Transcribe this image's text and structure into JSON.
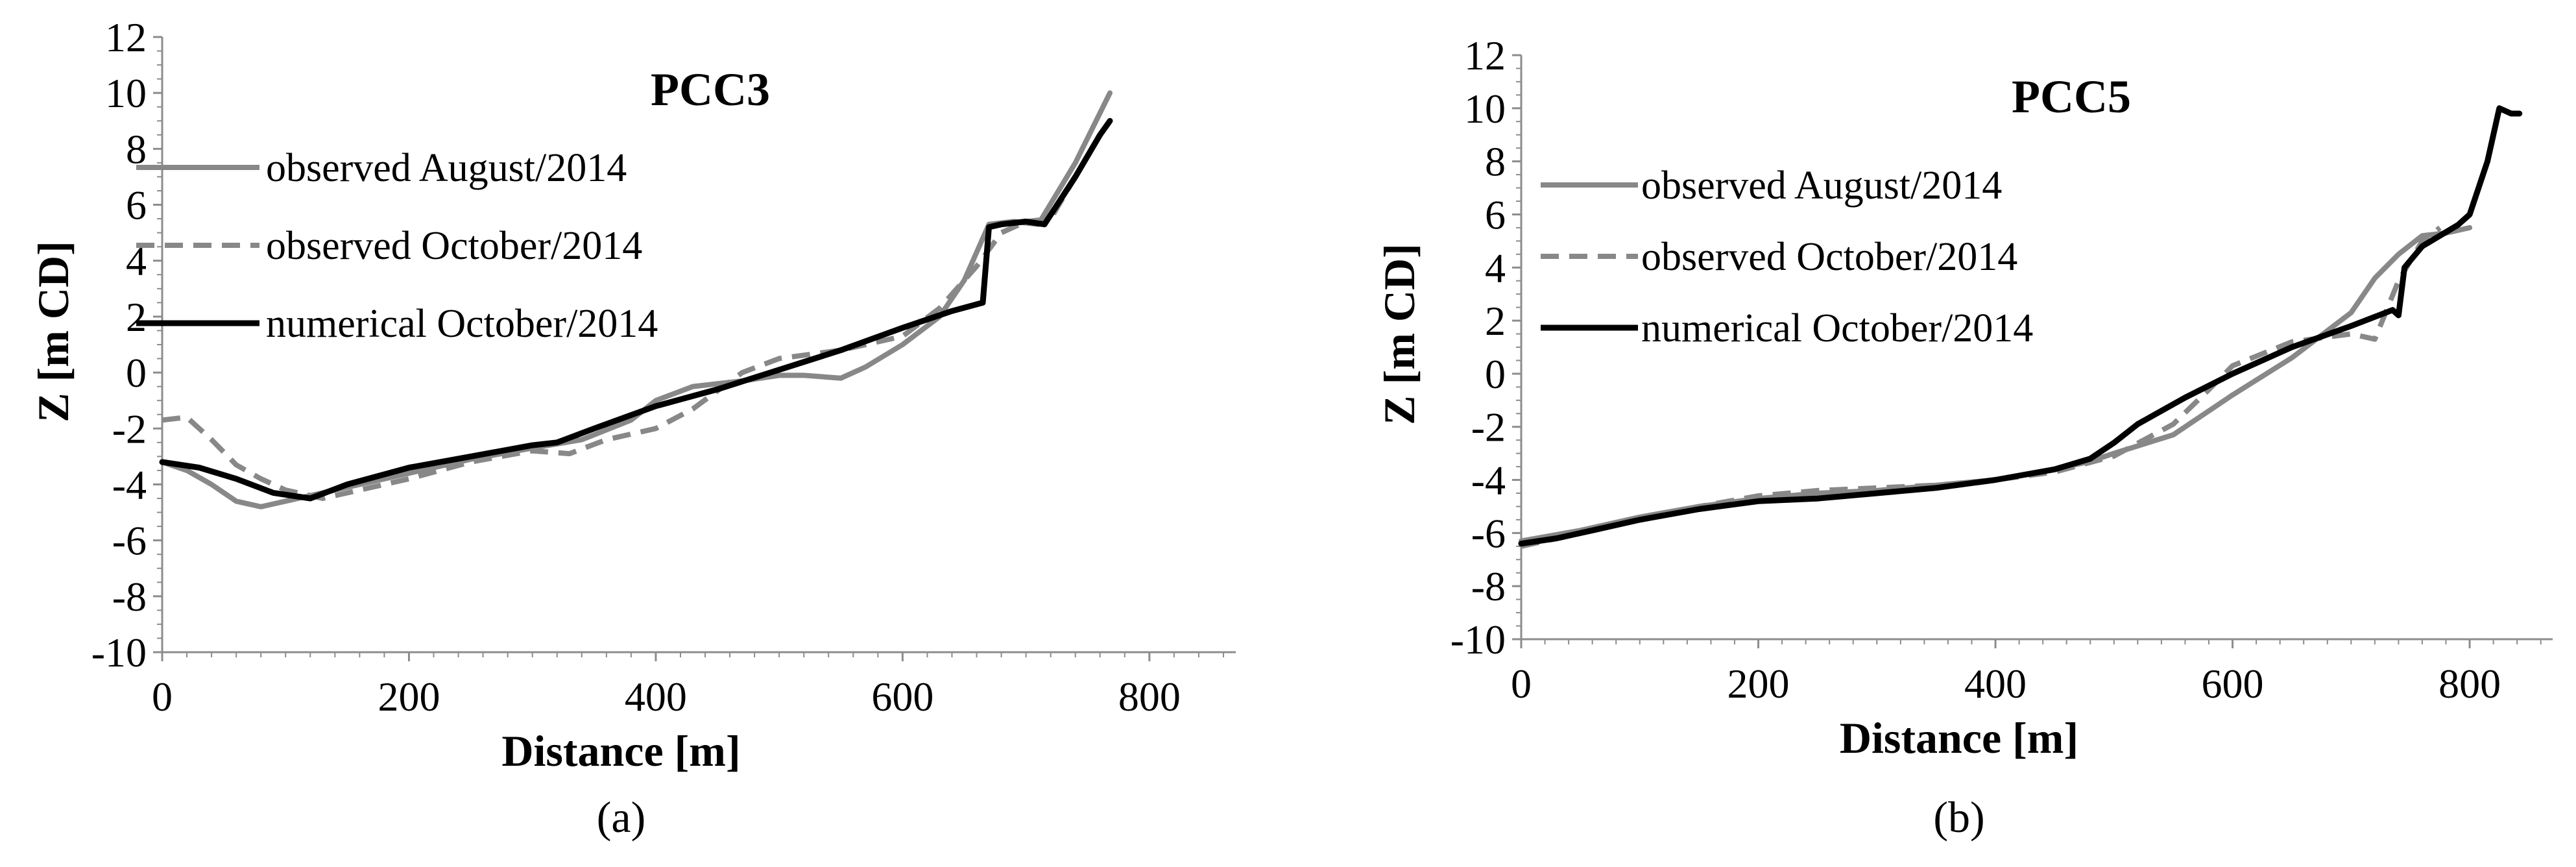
{
  "chart_data": [
    {
      "type": "line",
      "title": "PCC3",
      "xlabel": "Distance [m]",
      "ylabel": "Z [m CD]",
      "panel_label": "(a)",
      "xlim": [
        0,
        870
      ],
      "ylim": [
        -10,
        12
      ],
      "xticks": [
        0,
        200,
        400,
        600,
        800
      ],
      "yticks": [
        -10,
        -8,
        -6,
        -4,
        -2,
        0,
        2,
        4,
        6,
        8,
        10,
        12
      ],
      "grid": false,
      "legend_position": "left",
      "series": [
        {
          "name": "observed August/2014",
          "color": "#888888",
          "style": "solid",
          "x": [
            0,
            20,
            40,
            60,
            80,
            100,
            130,
            160,
            200,
            250,
            300,
            340,
            380,
            400,
            430,
            470,
            500,
            520,
            550,
            570,
            600,
            630,
            650,
            670,
            690,
            710,
            740,
            768
          ],
          "y": [
            -3.2,
            -3.5,
            -4.0,
            -4.6,
            -4.8,
            -4.6,
            -4.3,
            -4.0,
            -3.6,
            -3.1,
            -2.7,
            -2.4,
            -1.7,
            -1.0,
            -0.5,
            -0.3,
            -0.1,
            -0.1,
            -0.2,
            0.2,
            1.0,
            2.0,
            3.3,
            5.3,
            5.4,
            5.3,
            7.5,
            10.0
          ]
        },
        {
          "name": "observed October/2014",
          "color": "#888888",
          "style": "dashed",
          "x": [
            0,
            20,
            40,
            60,
            80,
            100,
            130,
            160,
            200,
            250,
            300,
            330,
            360,
            400,
            430,
            470,
            500,
            550,
            600,
            630,
            660,
            680,
            700,
            720,
            740,
            760,
            768
          ],
          "y": [
            -1.7,
            -1.6,
            -2.4,
            -3.3,
            -3.8,
            -4.2,
            -4.5,
            -4.2,
            -3.8,
            -3.2,
            -2.8,
            -2.9,
            -2.4,
            -2.0,
            -1.3,
            0.0,
            0.5,
            0.8,
            1.3,
            2.3,
            3.8,
            5.0,
            5.4,
            5.5,
            7.0,
            8.5,
            9.0
          ]
        },
        {
          "name": "numerical October/2014",
          "color": "#000000",
          "style": "solid",
          "x": [
            0,
            30,
            60,
            90,
            120,
            150,
            200,
            250,
            300,
            320,
            350,
            400,
            450,
            500,
            550,
            600,
            640,
            665,
            670,
            680,
            700,
            715,
            740,
            760,
            768
          ],
          "y": [
            -3.2,
            -3.4,
            -3.8,
            -4.3,
            -4.5,
            -4.0,
            -3.4,
            -3.0,
            -2.6,
            -2.5,
            -2.0,
            -1.2,
            -0.6,
            0.1,
            0.8,
            1.6,
            2.2,
            2.5,
            5.2,
            5.3,
            5.4,
            5.3,
            7.0,
            8.5,
            9.0
          ]
        }
      ]
    },
    {
      "type": "line",
      "title": "PCC5",
      "xlabel": "Distance [m]",
      "ylabel": "Z [m CD]",
      "panel_label": "(b)",
      "xlim": [
        0,
        870
      ],
      "ylim": [
        -10,
        12
      ],
      "xticks": [
        0,
        200,
        400,
        600,
        800
      ],
      "yticks": [
        -10,
        -8,
        -6,
        -4,
        -2,
        0,
        2,
        4,
        6,
        8,
        10,
        12
      ],
      "grid": false,
      "legend_position": "left",
      "series": [
        {
          "name": "observed August/2014",
          "color": "#888888",
          "style": "solid",
          "x": [
            0,
            50,
            100,
            150,
            200,
            250,
            300,
            350,
            400,
            450,
            480,
            500,
            550,
            600,
            650,
            700,
            720,
            740,
            760,
            780,
            800
          ],
          "y": [
            -6.3,
            -5.9,
            -5.4,
            -5.0,
            -4.7,
            -4.5,
            -4.4,
            -4.2,
            -4.0,
            -3.6,
            -3.3,
            -3.0,
            -2.3,
            -0.8,
            0.6,
            2.3,
            3.6,
            4.5,
            5.2,
            5.3,
            5.5
          ]
        },
        {
          "name": "observed October/2014",
          "color": "#888888",
          "style": "dashed",
          "x": [
            0,
            50,
            100,
            150,
            200,
            250,
            300,
            350,
            400,
            450,
            500,
            550,
            580,
            600,
            650,
            700,
            720,
            740,
            760,
            775
          ],
          "y": [
            -6.5,
            -6.0,
            -5.5,
            -5.0,
            -4.6,
            -4.4,
            -4.3,
            -4.2,
            -4.0,
            -3.7,
            -3.1,
            -1.9,
            -0.6,
            0.3,
            1.2,
            1.5,
            1.3,
            3.5,
            5.0,
            5.5
          ]
        },
        {
          "name": "numerical October/2014",
          "color": "#000000",
          "style": "solid",
          "x": [
            0,
            30,
            60,
            100,
            150,
            200,
            250,
            300,
            350,
            400,
            450,
            480,
            500,
            520,
            560,
            600,
            650,
            700,
            735,
            740,
            745,
            760,
            790,
            800,
            815,
            825,
            835,
            842
          ],
          "y": [
            -6.4,
            -6.2,
            -5.9,
            -5.5,
            -5.1,
            -4.8,
            -4.7,
            -4.5,
            -4.3,
            -4.0,
            -3.6,
            -3.2,
            -2.6,
            -1.9,
            -0.9,
            0.0,
            1.0,
            1.8,
            2.4,
            2.2,
            4.0,
            4.8,
            5.6,
            6.0,
            8.0,
            10.0,
            9.8,
            9.8
          ]
        }
      ]
    }
  ]
}
